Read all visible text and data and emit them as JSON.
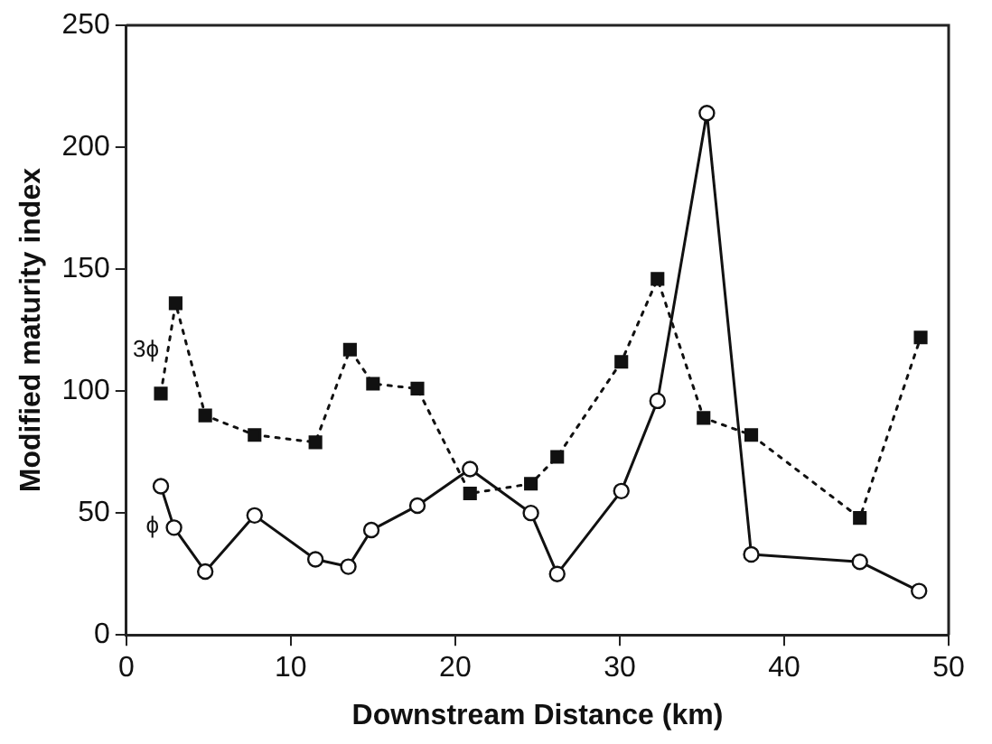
{
  "chart_data": {
    "type": "line",
    "xlabel": "Downstream Distance (km)",
    "ylabel": "Modified maturity index",
    "xlim": [
      0,
      50
    ],
    "xticks": [
      0,
      10,
      20,
      30,
      40,
      50
    ],
    "ylim": [
      0,
      250
    ],
    "yticks": [
      0,
      50,
      100,
      150,
      200,
      250
    ],
    "grid": false,
    "legend": false,
    "series": [
      {
        "name": "3ϕ",
        "color": "#111111",
        "marker": "square",
        "line_style": "dotted",
        "x": [
          2.1,
          3.0,
          4.8,
          7.8,
          11.5,
          13.6,
          15.0,
          17.7,
          20.9,
          24.6,
          26.2,
          30.1,
          32.3,
          35.1,
          38.0,
          44.6,
          48.3
        ],
        "values": [
          99,
          136,
          90,
          82,
          79,
          117,
          103,
          101,
          58,
          62,
          73,
          112,
          146,
          89,
          82,
          48,
          122
        ]
      },
      {
        "name": "ϕ",
        "color": "#111111",
        "marker": "circle",
        "line_style": "solid",
        "x": [
          2.1,
          2.9,
          4.8,
          7.8,
          11.5,
          13.5,
          14.9,
          17.7,
          20.9,
          24.6,
          26.2,
          30.1,
          32.3,
          35.3,
          38.0,
          44.6,
          48.2
        ],
        "values": [
          61,
          44,
          26,
          49,
          31,
          28,
          43,
          53,
          68,
          50,
          25,
          59,
          96,
          214,
          33,
          30,
          18
        ]
      }
    ]
  }
}
